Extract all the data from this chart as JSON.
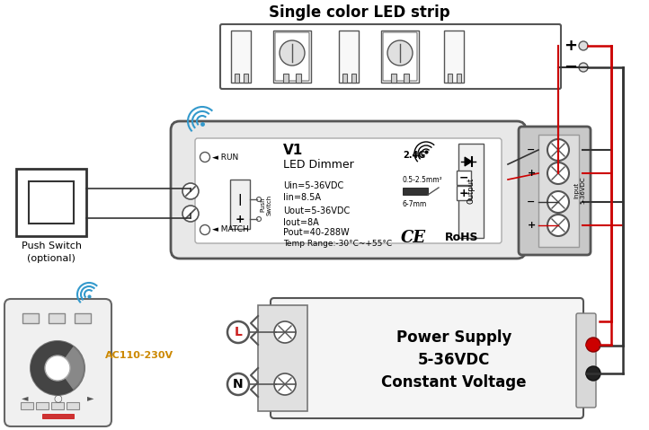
{
  "title": "Single color LED strip",
  "bg_color": "#ffffff",
  "text_color": "#000000",
  "wire_red": "#cc0000",
  "wire_black": "#333333",
  "box_edge": "#555555",
  "dimmer_lines": [
    "V1",
    "LED Dimmer",
    "Uin=5-36VDC",
    "Iin=8.5A",
    "Uout=5-36VDC",
    "Iout=8A",
    "Pout=40-288W",
    "Temp Range:-30°C~+55°C"
  ],
  "power_supply_text": [
    "Power Supply",
    "5-36VDC",
    "Constant Voltage"
  ],
  "ac_label": "AC110-230V",
  "push_switch_text": "Push Switch\n(optional)"
}
